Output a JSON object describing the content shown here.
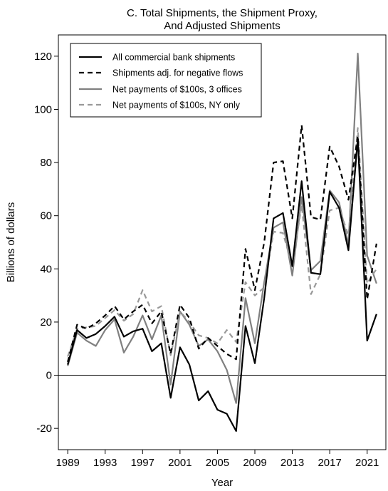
{
  "chart_data": {
    "type": "line",
    "title_line1": "C. Total Shipments, the Shipment Proxy,",
    "title_line2": "And Adjusted Shipments",
    "xlabel": "Year",
    "ylabel": "Billions of dollars",
    "xlim": [
      1988,
      2023
    ],
    "ylim": [
      -28,
      128
    ],
    "xticks": [
      1989,
      1993,
      1997,
      2001,
      2005,
      2009,
      2013,
      2017,
      2021
    ],
    "yticks": [
      -20,
      0,
      20,
      40,
      60,
      80,
      100,
      120
    ],
    "zero_line": true,
    "legend_position": "top-left",
    "x": [
      1989,
      1990,
      1991,
      1992,
      1993,
      1994,
      1995,
      1996,
      1997,
      1998,
      1999,
      2000,
      2001,
      2002,
      2003,
      2004,
      2005,
      2006,
      2007,
      2008,
      2009,
      2010,
      2011,
      2012,
      2013,
      2014,
      2015,
      2016,
      2017,
      2018,
      2019,
      2020,
      2021,
      2022
    ],
    "series": [
      {
        "name": "All commercial bank shipments",
        "color": "#000000",
        "dash": "solid",
        "values": [
          4,
          17,
          14,
          15.5,
          18.5,
          22,
          14.5,
          16.5,
          17.5,
          9,
          12,
          -8.5,
          10.5,
          4,
          -9.5,
          -6,
          -13,
          -14.5,
          -21,
          18.5,
          4.5,
          29,
          59,
          61,
          41,
          73,
          38.5,
          38,
          69,
          63,
          47,
          89,
          13,
          23
        ]
      },
      {
        "name": "Shipments adj. for negative flows",
        "color": "#000000",
        "dash": "dashed",
        "values": [
          5,
          19,
          17.5,
          19.5,
          22.5,
          26,
          21,
          24,
          26.5,
          19.5,
          24,
          8,
          26.5,
          21.5,
          10,
          14,
          11,
          8,
          6,
          47.5,
          32,
          50,
          80,
          80.5,
          59,
          94,
          59.5,
          58.5,
          86,
          78.5,
          66,
          90,
          28.5,
          49.5
        ]
      },
      {
        "name": "Net payments of $100s, 3 offices",
        "color": "#808080",
        "dash": "solid",
        "values": [
          3.5,
          16,
          13,
          11,
          17,
          21,
          8.5,
          14.5,
          22.5,
          13.5,
          22.5,
          -3.5,
          24,
          19,
          11,
          13.5,
          9,
          2,
          -10.5,
          29,
          12,
          35,
          55.5,
          57.5,
          37.5,
          67,
          39.5,
          43,
          69.5,
          65,
          49,
          121,
          45,
          34.5
        ]
      },
      {
        "name": "Net payments of $100s, NY only",
        "color": "#999999",
        "dash": "dashed",
        "values": [
          7,
          17.5,
          18,
          18.5,
          21.5,
          24.5,
          20.5,
          23,
          32,
          24,
          26,
          7.5,
          24,
          20,
          15,
          14,
          12,
          17,
          12.5,
          35,
          30,
          33,
          54,
          53.5,
          41,
          64,
          30.5,
          38,
          62,
          63,
          52.5,
          93,
          34.5,
          40
        ]
      }
    ]
  }
}
